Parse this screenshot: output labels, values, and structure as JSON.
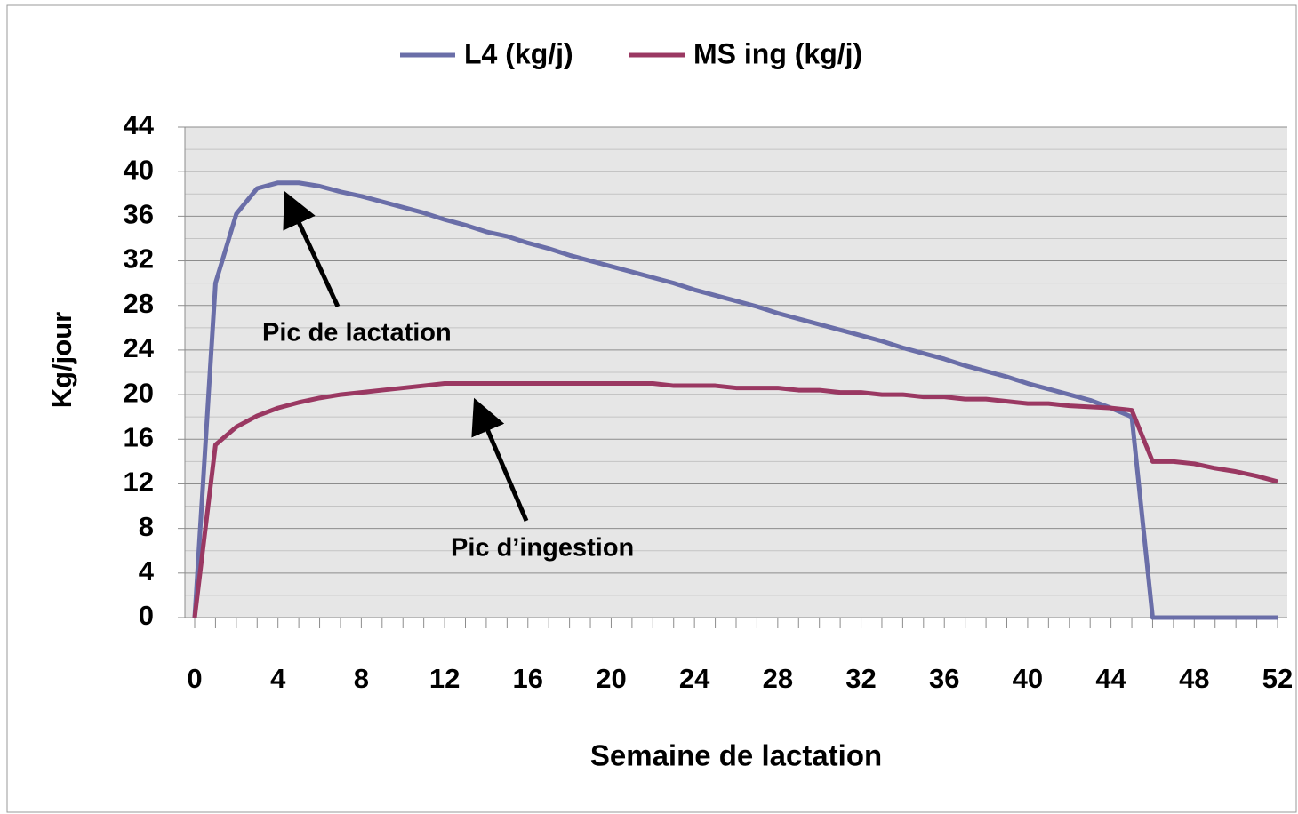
{
  "chart_data": {
    "type": "line",
    "x_label": "Semaine de lactation",
    "y_label": "Kg/jour",
    "x": [
      0,
      1,
      2,
      3,
      4,
      5,
      6,
      7,
      8,
      9,
      10,
      11,
      12,
      13,
      14,
      15,
      16,
      17,
      18,
      19,
      20,
      21,
      22,
      23,
      24,
      25,
      26,
      27,
      28,
      29,
      30,
      31,
      32,
      33,
      34,
      35,
      36,
      37,
      38,
      39,
      40,
      41,
      42,
      43,
      44,
      45,
      46,
      47,
      48,
      49,
      50,
      51,
      52
    ],
    "series": [
      {
        "name": "L4 (kg/j)",
        "color": "#6a6ea8",
        "values": [
          0,
          30,
          36.2,
          38.5,
          39,
          39,
          38.7,
          38.2,
          37.8,
          37.3,
          36.8,
          36.3,
          35.7,
          35.2,
          34.6,
          34.2,
          33.6,
          33.1,
          32.5,
          32,
          31.5,
          31,
          30.5,
          30,
          29.4,
          28.9,
          28.4,
          27.9,
          27.3,
          26.8,
          26.3,
          25.8,
          25.3,
          24.8,
          24.2,
          23.7,
          23.2,
          22.6,
          22.1,
          21.6,
          21,
          20.5,
          20,
          19.5,
          18.8,
          18,
          0,
          0,
          0,
          0,
          0,
          0,
          0
        ]
      },
      {
        "name": "MS ing (kg/j)",
        "color": "#9a3862",
        "values": [
          0,
          15.5,
          17.1,
          18.1,
          18.8,
          19.3,
          19.7,
          20,
          20.2,
          20.4,
          20.6,
          20.8,
          21,
          21,
          21,
          21,
          21,
          21,
          21,
          21,
          21,
          21,
          21,
          20.8,
          20.8,
          20.8,
          20.6,
          20.6,
          20.6,
          20.4,
          20.4,
          20.2,
          20.2,
          20,
          20,
          19.8,
          19.8,
          19.6,
          19.6,
          19.4,
          19.2,
          19.2,
          19,
          18.9,
          18.8,
          18.6,
          14,
          14,
          13.8,
          13.4,
          13.1,
          12.7,
          12.2
        ]
      }
    ],
    "annotations": [
      "Pic de lactation",
      "Pic d’ingestion"
    ],
    "xlim": [
      0,
      52
    ],
    "xticks": [
      0,
      4,
      8,
      12,
      16,
      20,
      24,
      28,
      32,
      36,
      40,
      44,
      48,
      52
    ],
    "ylim": [
      0,
      44
    ],
    "yticks": [
      0,
      4,
      8,
      12,
      16,
      20,
      24,
      28,
      32,
      36,
      40,
      44
    ],
    "yminorticks": [
      2,
      6,
      10,
      14,
      18,
      22,
      26,
      30,
      34,
      38,
      42
    ],
    "grid": true,
    "legend": "top"
  }
}
